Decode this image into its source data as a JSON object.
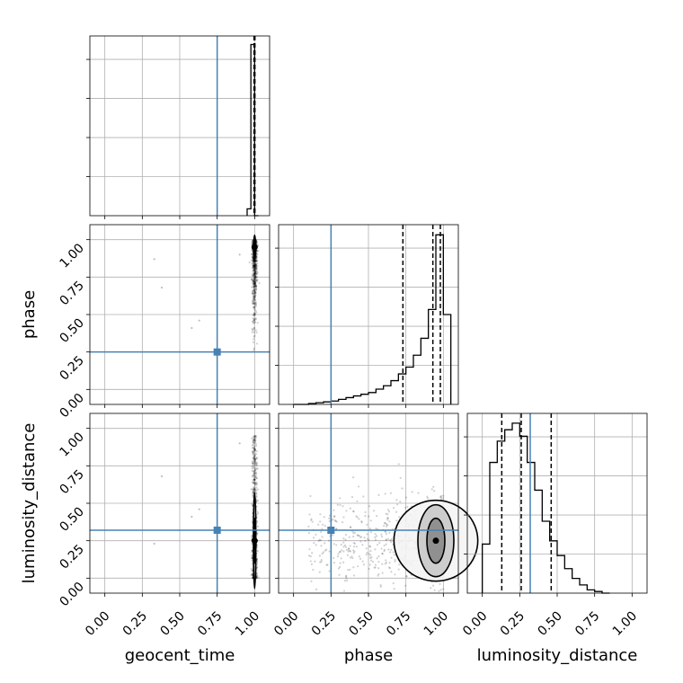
{
  "chart_data": {
    "type": "corner",
    "parameters": [
      "geocent_time",
      "phase",
      "luminosity_distance"
    ],
    "axis_range": [
      -0.1,
      1.1
    ],
    "ticks": [
      0.0,
      0.25,
      0.5,
      0.75,
      1.0
    ],
    "tick_labels": [
      "0.00",
      "0.25",
      "0.50",
      "0.75",
      "1.00"
    ],
    "grid": true,
    "truths": {
      "geocent_time": 0.75,
      "phase": 0.25,
      "luminosity_distance": 0.32
    },
    "colors": {
      "truth": "#4682b4",
      "hist": "#000000",
      "grid": "#b0b0b0",
      "points": "#000000"
    },
    "histograms": {
      "geocent_time": {
        "bins": [
          0.95,
          0.975,
          1.0,
          1.025
        ],
        "counts": [
          0.04,
          1.0,
          0.0
        ],
        "quantiles": [
          0.996,
          1.002
        ],
        "ylim": [
          0,
          1.05
        ]
      },
      "phase": {
        "bins": [
          0.0,
          0.05,
          0.1,
          0.15,
          0.2,
          0.25,
          0.3,
          0.35,
          0.4,
          0.45,
          0.5,
          0.55,
          0.6,
          0.65,
          0.7,
          0.75,
          0.8,
          0.85,
          0.9,
          0.95,
          1.0,
          1.05
        ],
        "counts": [
          0.0,
          0.0,
          0.005,
          0.01,
          0.015,
          0.02,
          0.03,
          0.04,
          0.05,
          0.06,
          0.07,
          0.09,
          0.11,
          0.14,
          0.18,
          0.22,
          0.29,
          0.39,
          0.56,
          1.0,
          0.53
        ],
        "quantiles": [
          0.73,
          0.93,
          0.98
        ],
        "ylim": [
          0,
          1.06
        ]
      },
      "luminosity_distance": {
        "bins": [
          0.0,
          0.05,
          0.1,
          0.15,
          0.2,
          0.25,
          0.3,
          0.35,
          0.4,
          0.45,
          0.5,
          0.55,
          0.6,
          0.65,
          0.7,
          0.75,
          0.8,
          0.85
        ],
        "counts": [
          0.3,
          0.8,
          0.93,
          1.0,
          1.04,
          0.96,
          0.8,
          0.63,
          0.44,
          0.32,
          0.23,
          0.15,
          0.09,
          0.05,
          0.02,
          0.01,
          0.0
        ],
        "quantiles": [
          0.13,
          0.26,
          0.46
        ],
        "ylim": [
          0,
          1.1
        ]
      }
    },
    "contours": {
      "geocent_time__phase": {
        "x": 1.0,
        "y": 0.95,
        "levels": [
          [
            0.006,
            0.08
          ],
          [
            0.004,
            0.04
          ],
          [
            0.002,
            0.015
          ]
        ]
      },
      "geocent_time__luminosity_distance": {
        "x": 1.0,
        "y": 0.25,
        "levels": [
          [
            0.008,
            0.32
          ],
          [
            0.006,
            0.15
          ],
          [
            0.003,
            0.06
          ]
        ]
      },
      "phase__luminosity_distance": {
        "x": 0.95,
        "y": 0.25,
        "levels": [
          [
            0.28,
            0.27
          ],
          [
            0.12,
            0.24
          ],
          [
            0.06,
            0.15
          ]
        ]
      }
    },
    "scatter": {
      "geocent_time__phase": {
        "x_center": 1.0,
        "x_spread": 0.02,
        "y_min": 0.1,
        "y_max": 1.0
      },
      "geocent_time__luminosity_distance": {
        "x_center": 1.0,
        "x_spread": 0.02,
        "y_min": 0.0,
        "y_max": 0.95
      },
      "phase__luminosity_distance": {
        "x_min": 0.1,
        "x_max": 1.0,
        "y_center": 0.25,
        "y_spread": 0.2
      }
    }
  }
}
